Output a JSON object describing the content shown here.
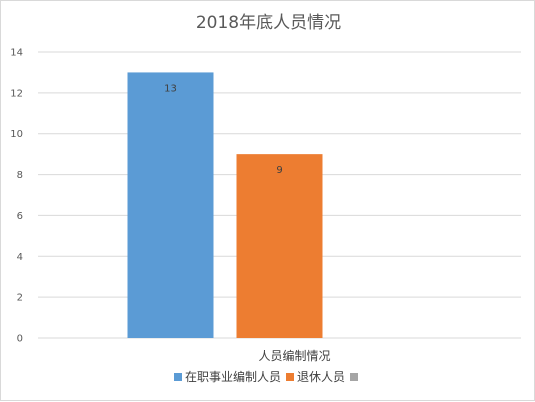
{
  "chart_data": {
    "type": "bar",
    "title": "2018年底人员情况",
    "categories": [
      "人员编制情况"
    ],
    "series": [
      {
        "name": "在职事业编制人员",
        "values": [
          13
        ],
        "color": "#5b9bd5"
      },
      {
        "name": "退休人员",
        "values": [
          9
        ],
        "color": "#ed7d31"
      },
      {
        "name": "",
        "values": [
          null
        ],
        "color": "#a5a5a5"
      }
    ],
    "ylim": [
      0,
      14
    ],
    "yticks": [
      0,
      2,
      4,
      6,
      8,
      10,
      12,
      14
    ],
    "grid": true,
    "legend_position": "bottom",
    "data_labels": true
  }
}
